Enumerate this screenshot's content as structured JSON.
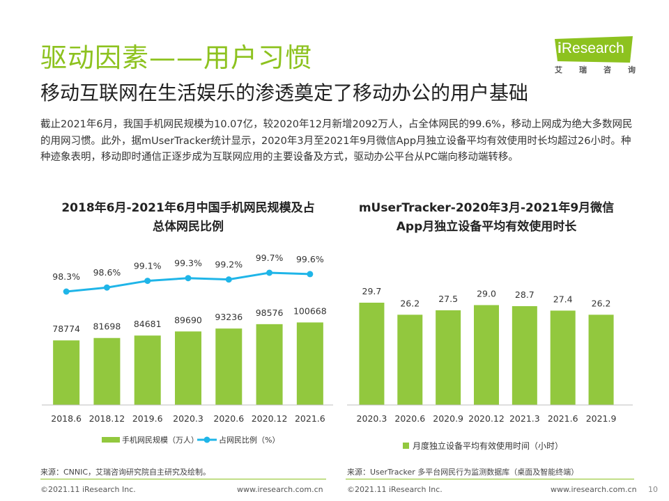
{
  "header": {
    "title": "驱动因素——用户习惯",
    "subtitle": "移动互联网在生活娱乐的渗透奠定了移动办公的用户基础",
    "intro": "截止2021年6月，我国手机网民规模为10.07亿，较2020年12月新增2092万人，占全体网民的99.6%，移动上网成为绝大多数网民的用网习惯。此外，据mUserTracker统计显示，2020年3月至2021年9月微信App月独立设备平均有效使用时长均超过26小时。种种迹象表明，移动即时通信正逐步成为互联网应用的主要设备及方式，驱动办公平台从PC端向移动端转移。"
  },
  "logo": {
    "brand_i": "i",
    "brand_rest": "Research",
    "sub_chars": [
      "艾",
      "瑞",
      "咨",
      "询"
    ]
  },
  "colors": {
    "accent": "#8dc21f",
    "bar": "#92c83e",
    "line": "#1fb5e8"
  },
  "chart_data": [
    {
      "type": "bar",
      "title": "2018年6月-2021年6月中国手机网民规模及占总体网民比例",
      "categories": [
        "2018.6",
        "2018.12",
        "2019.6",
        "2020.3",
        "2020.6",
        "2020.12",
        "2021.6"
      ],
      "series": [
        {
          "name": "手机网民规模（万人）",
          "type": "bar",
          "values": [
            78774,
            81698,
            84681,
            89690,
            93236,
            98576,
            100668
          ]
        },
        {
          "name": "占网民比例（%）",
          "type": "line",
          "values": [
            98.3,
            98.6,
            99.1,
            99.3,
            99.2,
            99.7,
            99.6
          ],
          "labels": [
            "98.3%",
            "98.6%",
            "99.1%",
            "99.3%",
            "99.2%",
            "99.7%",
            "99.6%"
          ]
        }
      ],
      "legend_position": "bottom",
      "grid": false,
      "source": "来源：CNNIC，艾瑞咨询研究院自主研究及绘制。"
    },
    {
      "type": "bar",
      "title": "mUserTracker-2020年3月-2021年9月微信App月独立设备平均有效使用时长",
      "categories": [
        "2020.3",
        "2020.6",
        "2020.9",
        "2020.12",
        "2021.3",
        "2021.6",
        "2021.9"
      ],
      "series": [
        {
          "name": "月度独立设备平均有效使用时间（小时）",
          "type": "bar",
          "values": [
            29.7,
            26.2,
            27.5,
            29.0,
            28.7,
            27.4,
            26.2
          ],
          "labels": [
            "29.7",
            "26.2",
            "27.5",
            "29.0",
            "28.7",
            "27.4",
            "26.2"
          ]
        }
      ],
      "legend_position": "bottom",
      "grid": false,
      "source": "来源：UserTracker 多平台网民行为监测数据库（桌面及智能终端）"
    }
  ],
  "charts_text": {
    "c1_title_l1": "2018年6月-2021年6月中国手机网民规模及占",
    "c1_title_l2": "总体网民比例",
    "c2_title_l1": "mUserTracker-2020年3月-2021年9月微信",
    "c2_title_l2": "App月独立设备平均有效使用时长"
  },
  "footer": {
    "left_copy": "©2021.11 iResearch Inc.",
    "left_url": "www.iresearch.com.cn",
    "right_copy": "©2021.11 iResearch Inc.",
    "right_url": "www.iresearch.com.cn",
    "page": "10"
  }
}
